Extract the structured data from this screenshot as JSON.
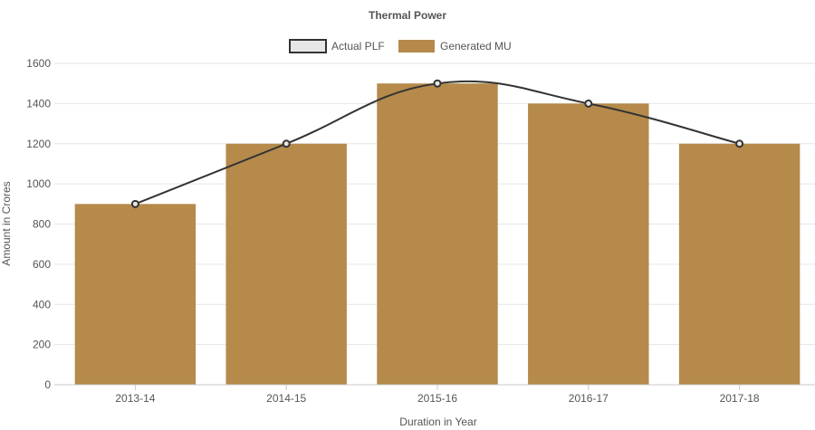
{
  "chart_data": {
    "type": "bar",
    "title": "Thermal Power",
    "xlabel": "Duration in Year",
    "ylabel": "Amount in Crores",
    "categories": [
      "2013-14",
      "2014-15",
      "2015-16",
      "2016-17",
      "2017-18"
    ],
    "series": [
      {
        "name": "Actual PLF",
        "type": "line",
        "values": [
          900,
          1200,
          1500,
          1400,
          1200
        ],
        "color": "#333333",
        "fill": "#e6e6e6"
      },
      {
        "name": "Generated MU",
        "type": "bar",
        "values": [
          900,
          1200,
          1500,
          1400,
          1200
        ],
        "color": "#b58a4b"
      }
    ],
    "ylim": [
      0,
      1600
    ],
    "yticks": [
      0,
      200,
      400,
      600,
      800,
      1000,
      1200,
      1400,
      1600
    ],
    "grid": true,
    "legend_position": "top"
  }
}
